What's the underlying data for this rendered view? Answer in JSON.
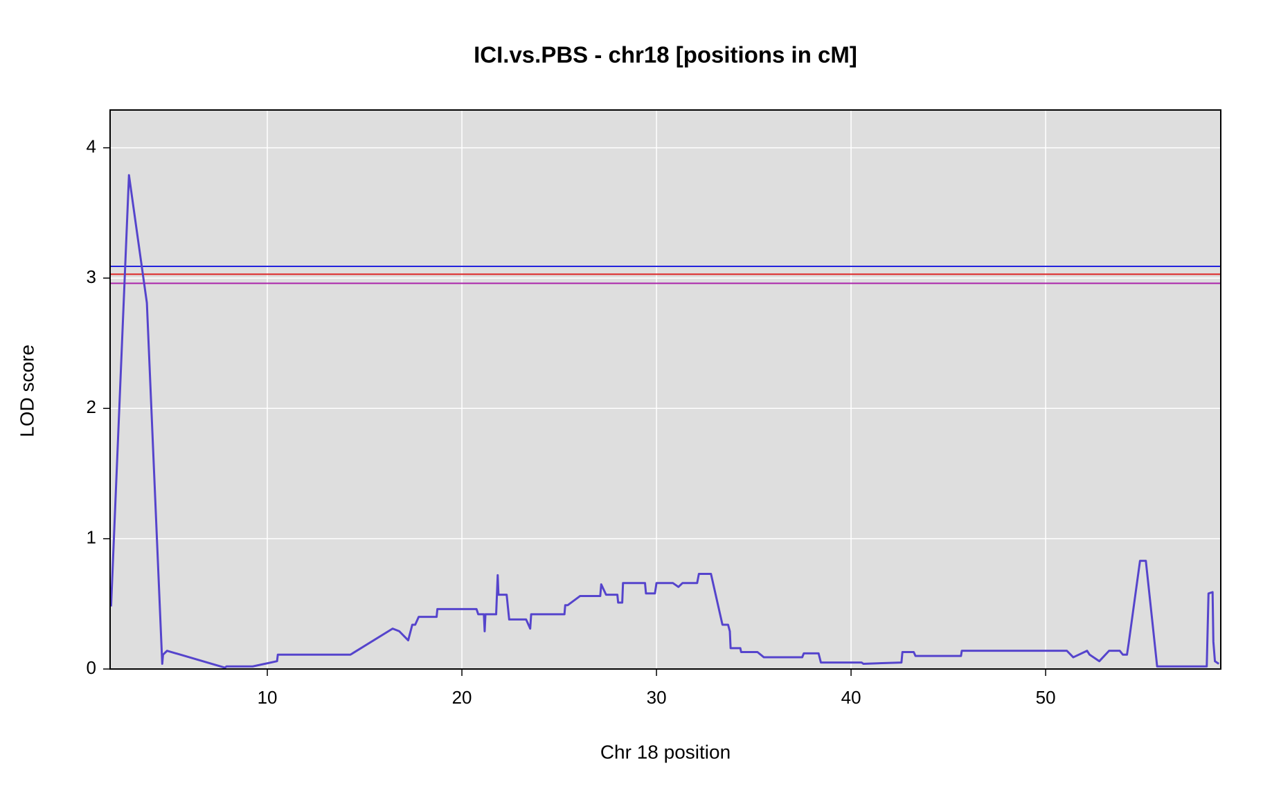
{
  "chart_data": {
    "type": "line",
    "title": "ICI.vs.PBS - chr18 [positions in cM]",
    "x_label": "Chr 18 position",
    "y_label": "LOD score",
    "xlim": [
      1.92,
      59.0
    ],
    "ylim": [
      0,
      4.29
    ],
    "xticks": [
      10,
      20,
      30,
      40,
      50
    ],
    "yticks": [
      0,
      1,
      2,
      3,
      4
    ],
    "grid": true,
    "background": "#dedede",
    "thresholds": [
      {
        "value": 3.09,
        "color": "#2222dd"
      },
      {
        "value": 3.03,
        "color": "#dd2222"
      },
      {
        "value": 2.96,
        "color": "#aa22aa"
      }
    ],
    "x": [
      1.97,
      2.89,
      3.81,
      4.6,
      4.64,
      4.85,
      7.82,
      7.9,
      9.25,
      10.5,
      10.54,
      14.27,
      16.44,
      16.78,
      17.24,
      17.45,
      17.6,
      17.78,
      18.7,
      18.74,
      20.75,
      20.84,
      21.13,
      21.17,
      21.21,
      21.76,
      21.84,
      21.88,
      22.3,
      22.43,
      23.3,
      23.51,
      23.56,
      25.27,
      25.31,
      25.44,
      26.07,
      27.11,
      27.16,
      27.41,
      27.99,
      28.03,
      28.24,
      28.28,
      29.25,
      29.41,
      29.46,
      29.92,
      30,
      30.84,
      31.13,
      31.34,
      32.09,
      32.18,
      32.8,
      33.39,
      33.68,
      33.77,
      33.81,
      34.31,
      34.35,
      35.19,
      35.52,
      37.49,
      37.57,
      38.33,
      38.45,
      40.54,
      40.63,
      42.59,
      42.64,
      43.22,
      43.31,
      45.65,
      45.69,
      51.09,
      51.42,
      52.13,
      52.26,
      52.76,
      53.26,
      53.81,
      53.97,
      54.18,
      54.27,
      54.85,
      55.15,
      55.73,
      58.28,
      58.37,
      58.58,
      58.62,
      58.7,
      58.9
    ],
    "series": [
      {
        "color": "#5544cc",
        "values": [
          0.48,
          3.79,
          2.81,
          0.04,
          0.11,
          0.14,
          0.01,
          0.02,
          0.02,
          0.06,
          0.11,
          0.11,
          0.31,
          0.29,
          0.22,
          0.34,
          0.34,
          0.4,
          0.4,
          0.46,
          0.46,
          0.42,
          0.42,
          0.29,
          0.42,
          0.42,
          0.72,
          0.57,
          0.57,
          0.38,
          0.38,
          0.31,
          0.42,
          0.42,
          0.49,
          0.49,
          0.56,
          0.56,
          0.65,
          0.57,
          0.57,
          0.51,
          0.51,
          0.66,
          0.66,
          0.66,
          0.58,
          0.58,
          0.66,
          0.66,
          0.63,
          0.66,
          0.66,
          0.73,
          0.73,
          0.34,
          0.34,
          0.29,
          0.16,
          0.16,
          0.13,
          0.13,
          0.09,
          0.09,
          0.12,
          0.12,
          0.05,
          0.05,
          0.04,
          0.05,
          0.13,
          0.13,
          0.1,
          0.1,
          0.14,
          0.14,
          0.09,
          0.14,
          0.11,
          0.06,
          0.14,
          0.14,
          0.11,
          0.11,
          0.2,
          0.83,
          0.83,
          0.02,
          0.02,
          0.58,
          0.59,
          0.21,
          0.06,
          0.04
        ]
      }
    ]
  }
}
